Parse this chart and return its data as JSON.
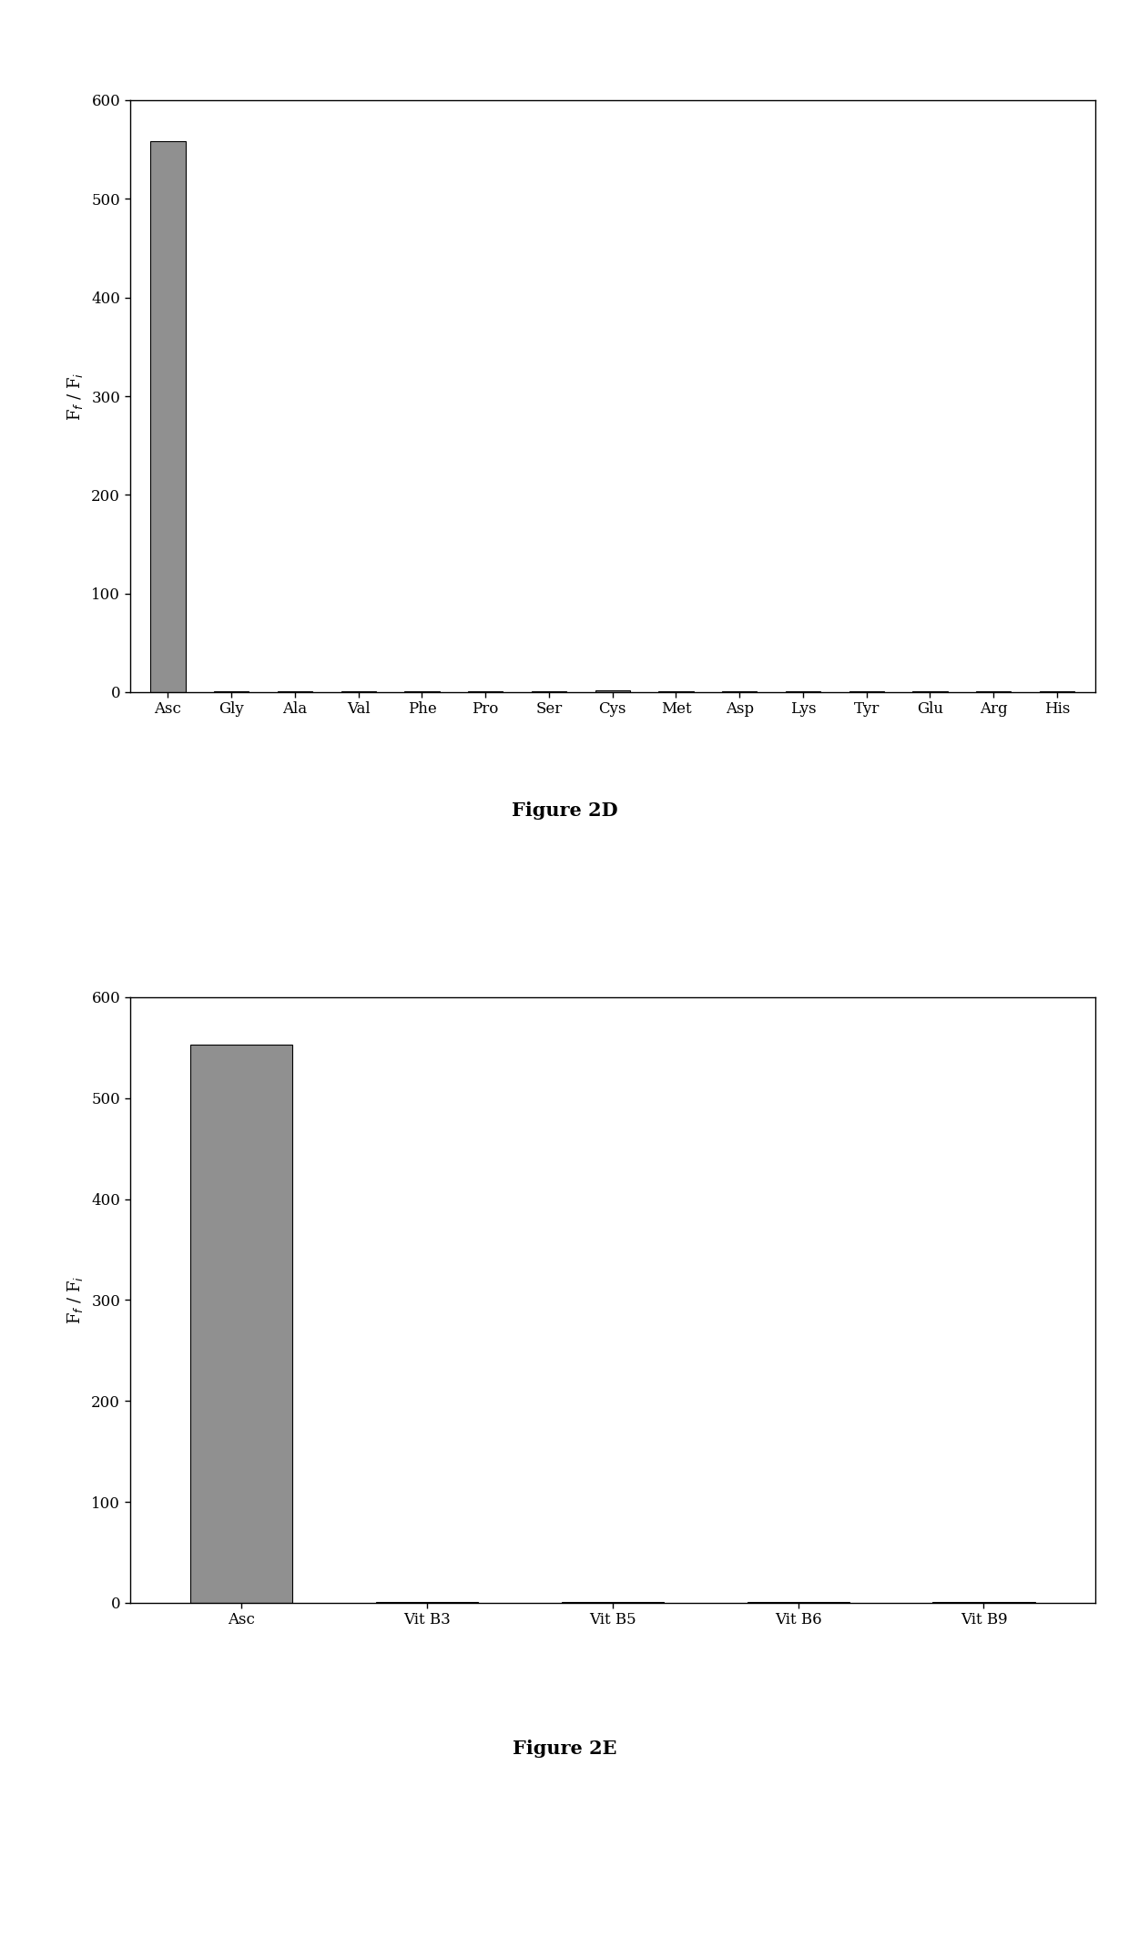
{
  "chart_2d": {
    "categories": [
      "Asc",
      "Gly",
      "Ala",
      "Val",
      "Phe",
      "Pro",
      "Ser",
      "Cys",
      "Met",
      "Asp",
      "Lys",
      "Tyr",
      "Glu",
      "Arg",
      "His"
    ],
    "values": [
      558,
      1,
      1,
      1,
      1,
      1,
      1,
      2,
      1,
      1,
      1,
      1,
      1,
      1,
      1
    ],
    "ylim": [
      0,
      600
    ],
    "yticks": [
      0,
      100,
      200,
      300,
      400,
      500,
      600
    ],
    "ylabel": "F$_f$ / F$_i$",
    "bar_color": "#909090",
    "caption": "Figure 2D",
    "caption_fontsize": 15,
    "caption_fontweight": "bold"
  },
  "chart_2e": {
    "categories": [
      "Asc",
      "Vit B3",
      "Vit B5",
      "Vit B6",
      "Vit B9"
    ],
    "values": [
      553,
      1,
      1,
      1,
      1
    ],
    "ylim": [
      0,
      600
    ],
    "yticks": [
      0,
      100,
      200,
      300,
      400,
      500,
      600
    ],
    "ylabel": "F$_f$ / F$_i$",
    "bar_color": "#909090",
    "caption": "Figure 2E",
    "caption_fontsize": 15,
    "caption_fontweight": "bold"
  },
  "background_color": "#ffffff",
  "tick_fontsize": 12,
  "label_fontsize": 13,
  "bar_width": 0.55,
  "figure_width": 12.4,
  "figure_height": 21.4
}
